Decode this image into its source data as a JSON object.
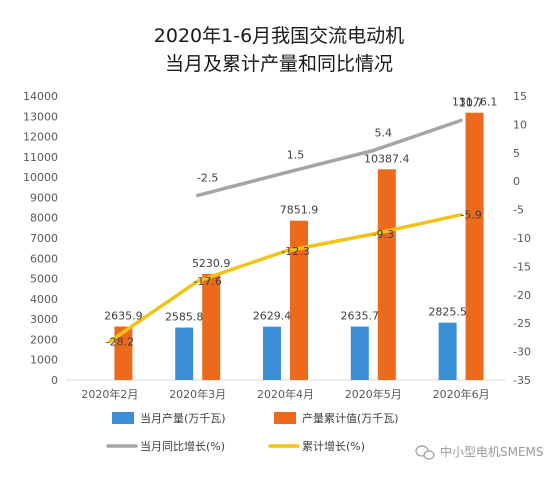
{
  "chart_data": {
    "type": "bar",
    "title_lines": [
      "2020年1-6月我国交流电动机",
      "当月及累计产量和同比情况"
    ],
    "categories": [
      "2020年2月",
      "2020年3月",
      "2020年4月",
      "2020年5月",
      "2020年6月"
    ],
    "left_axis": {
      "ylim": [
        0,
        14000
      ],
      "ticks": [
        "0",
        "1000",
        "2000",
        "3000",
        "4000",
        "5000",
        "6000",
        "7000",
        "8000",
        "9000",
        "10000",
        "11000",
        "12000",
        "13000",
        "14000"
      ]
    },
    "right_axis": {
      "ylim": [
        -35,
        15
      ],
      "ticks": [
        "-35",
        "-30",
        "-25",
        "-20",
        "-15",
        "-10",
        "-5",
        "0",
        "5",
        "10",
        "15"
      ]
    },
    "series": [
      {
        "name": "当月产量(万千瓦)",
        "kind": "bar",
        "axis": "left",
        "color": "#3a8fd6",
        "values": [
          null,
          2585.8,
          2629.4,
          2635.7,
          2825.5
        ],
        "labels": [
          "",
          "2585.8",
          "2629.4",
          "2635.7",
          "2825.5"
        ]
      },
      {
        "name": "产量累计值(万千瓦)",
        "kind": "bar",
        "axis": "left",
        "color": "#ed6a1c",
        "values": [
          2635.9,
          5230.9,
          7851.9,
          10387.4,
          13176.1
        ],
        "labels": [
          "2635.9",
          "5230.9",
          "7851.9",
          "10387.4",
          "13176.1"
        ]
      },
      {
        "name": "当月同比增长(%)",
        "kind": "line",
        "axis": "right",
        "color": "#a5a5a5",
        "values": [
          null,
          -2.5,
          1.5,
          5.4,
          10.7
        ],
        "labels": [
          "",
          "-2.5",
          "1.5",
          "5.4",
          "10.7"
        ]
      },
      {
        "name": "累计增长(%)",
        "kind": "line",
        "axis": "right",
        "color": "#f2c314",
        "values": [
          -28.2,
          -17.6,
          -12.3,
          -9.3,
          -5.9
        ],
        "labels": [
          "-28.2",
          "-17.6",
          "-12.3",
          "-9.3",
          "-5.9"
        ]
      }
    ],
    "legend_position": "bottom",
    "grid": false
  },
  "watermark": {
    "text": "中小型电机SMEMS",
    "icon": "wechat-icon"
  }
}
